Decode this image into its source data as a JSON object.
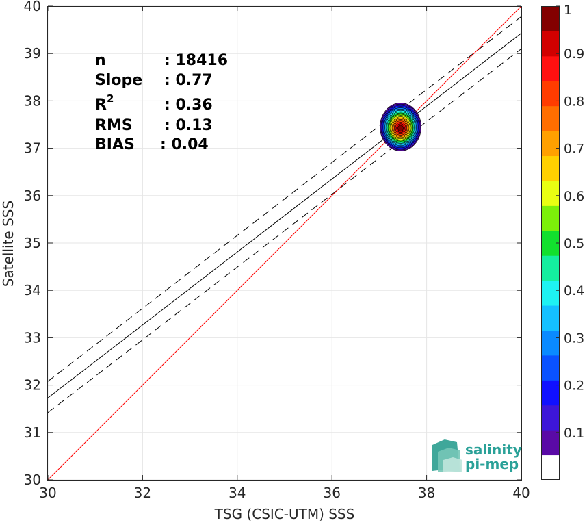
{
  "chart_data": {
    "type": "scatter",
    "subtype": "density-contour",
    "xlabel": "TSG (CSIC-UTM) SSS",
    "ylabel": "Satellite SSS",
    "xlim": [
      30,
      40
    ],
    "ylim": [
      30,
      40
    ],
    "xticks": [
      "30",
      "32",
      "34",
      "36",
      "38",
      "40"
    ],
    "yticks": [
      "30",
      "31",
      "32",
      "33",
      "34",
      "35",
      "36",
      "37",
      "38",
      "39",
      "40"
    ],
    "grid": true,
    "stats": [
      {
        "label": "n",
        "value": ": 18416"
      },
      {
        "label": "Slope",
        "value": ": 0.77"
      },
      {
        "label": "R",
        "sup": "2",
        "value": ": 0.36"
      },
      {
        "label": "RMS",
        "value": ": 0.13"
      },
      {
        "label": "BIAS",
        "value": ": 0.04"
      }
    ],
    "lines": {
      "identity": {
        "color": "#ff0000",
        "x": [
          30,
          40
        ],
        "y": [
          30,
          40
        ]
      },
      "fit": {
        "color": "#000000",
        "x": [
          30,
          40
        ],
        "y": [
          31.73,
          39.43
        ]
      },
      "fit_upper": {
        "color": "#000000",
        "dashed": true,
        "x": [
          30,
          40
        ],
        "y": [
          32.08,
          39.78
        ]
      },
      "fit_lower": {
        "color": "#000000",
        "dashed": true,
        "x": [
          30,
          40
        ],
        "y": [
          31.42,
          39.1
        ]
      }
    },
    "density_center": {
      "x": 37.45,
      "y": 37.45
    },
    "colorbar": {
      "range": [
        0,
        1
      ],
      "ticks": [
        "0.1",
        "0.2",
        "0.3",
        "0.4",
        "0.5",
        "0.6",
        "0.7",
        "0.8",
        "0.9",
        "1"
      ],
      "levels": [
        "#ffffff",
        "#5a0aa6",
        "#3d16d8",
        "#1010ff",
        "#0a52ff",
        "#0a8aff",
        "#14c0ff",
        "#1ef2f2",
        "#14ee9f",
        "#12e02e",
        "#7cf00a",
        "#e9ff12",
        "#ffd000",
        "#ffa000",
        "#ff6e00",
        "#ff3c00",
        "#ff1010",
        "#d10000",
        "#830000"
      ]
    }
  },
  "logo": {
    "line1": "salinity",
    "line2": "pi-mep"
  }
}
